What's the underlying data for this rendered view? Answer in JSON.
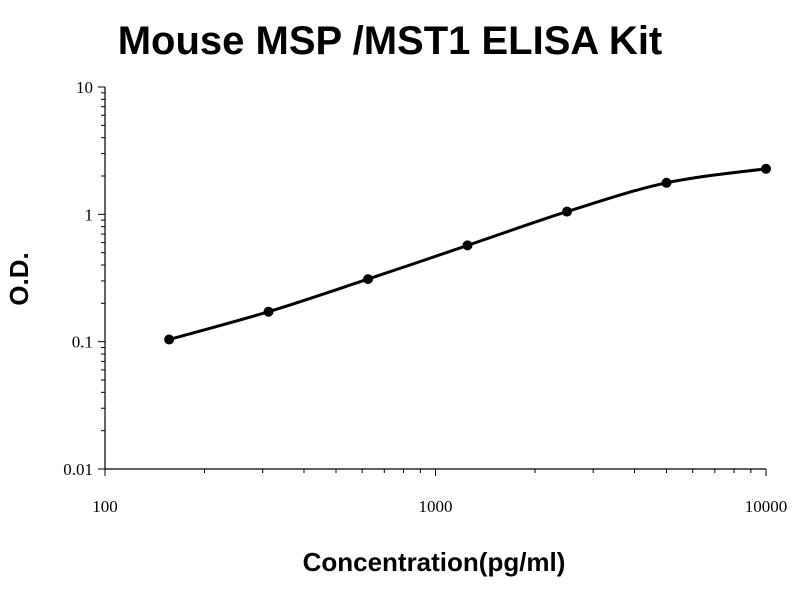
{
  "chart_data": {
    "type": "line",
    "title": "Mouse MSP /MST1 ELISA Kit",
    "xlabel": "Concentration(pg/ml)",
    "ylabel": "O.D.",
    "x_scale": "log",
    "y_scale": "log",
    "xlim": [
      100,
      10000
    ],
    "ylim": [
      0.01,
      10
    ],
    "x_ticks": [
      {
        "value": 100,
        "label": "100"
      },
      {
        "value": 1000,
        "label": "1000"
      },
      {
        "value": 10000,
        "label": "10000"
      }
    ],
    "y_ticks": [
      {
        "value": 0.01,
        "label": "0.01"
      },
      {
        "value": 0.1,
        "label": "0.1"
      },
      {
        "value": 1,
        "label": "1"
      },
      {
        "value": 10,
        "label": "10"
      }
    ],
    "grid": false,
    "legend": "none",
    "series": [
      {
        "x": [
          156.25,
          312.5,
          625,
          1250,
          2500,
          5000,
          10000
        ],
        "y": [
          0.104,
          0.172,
          0.31,
          0.57,
          1.05,
          1.77,
          2.28
        ]
      }
    ],
    "colors": {
      "line": "#000000",
      "marker": "#000000",
      "axis": "#000000"
    }
  }
}
